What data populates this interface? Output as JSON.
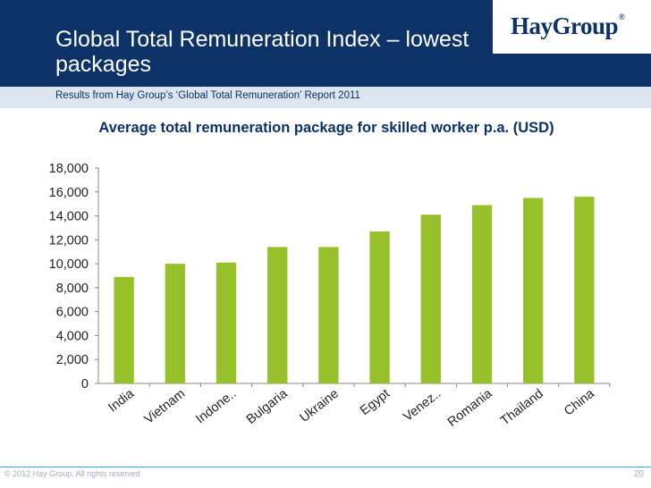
{
  "slide": {
    "title": "Global Total Remuneration Index – lowest packages",
    "subtitle": "Results from Hay Group’s ‘Global Total Remuneration’ Report 2011",
    "logo_text": "HayGroup",
    "logo_mark": "®",
    "copyright": "© 2012 Hay Group. All rights reserved",
    "page_number": "20"
  },
  "colors": {
    "header": "#0c3267",
    "bar": "#97c12b",
    "accent_line": "#30b4cc"
  },
  "chart_data": {
    "type": "bar",
    "title": "Average total remuneration package for skilled worker p.a. (USD)",
    "categories": [
      "India",
      "Vietnam",
      "Indone..",
      "Bulgaria",
      "Ukraine",
      "Egypt",
      "Venez..",
      "Romania",
      "Thailand",
      "China"
    ],
    "values": [
      8900,
      10000,
      10100,
      11400,
      11400,
      12700,
      14100,
      14900,
      15500,
      15600
    ],
    "ylim": [
      0,
      18000
    ],
    "yticks": [
      0,
      2000,
      4000,
      6000,
      8000,
      10000,
      12000,
      14000,
      16000,
      18000
    ],
    "ytick_labels": [
      "0",
      "2,000",
      "4,000",
      "6,000",
      "8,000",
      "10,000",
      "12,000",
      "14,000",
      "16,000",
      "18,000"
    ],
    "grid": false,
    "legend": "none"
  }
}
